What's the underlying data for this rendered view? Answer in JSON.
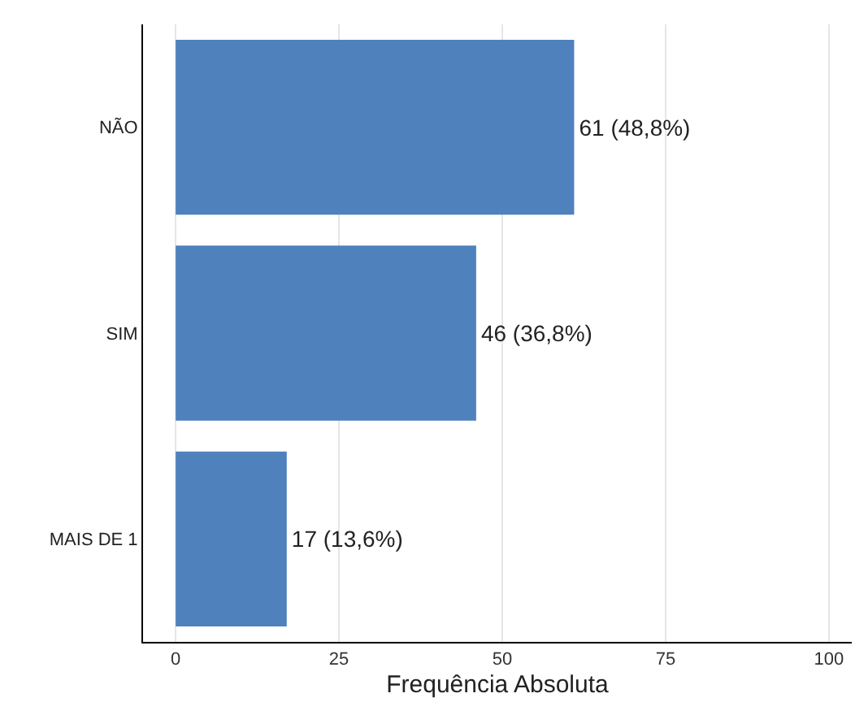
{
  "chart_data": {
    "type": "bar",
    "orientation": "horizontal",
    "xlabel": "Frequência Absoluta",
    "categories": [
      "NÃO",
      "SIM",
      "MAIS DE 1"
    ],
    "series": [
      {
        "color": "#4f81bd",
        "values": [
          61,
          46,
          17
        ],
        "value_labels": [
          "61 (48,8%)",
          "46 (36,8%)",
          "17 (13,6%)"
        ]
      }
    ],
    "xlim": [
      -5,
      103.5
    ],
    "xticks": [
      0,
      25,
      50,
      75,
      100
    ],
    "grid": "x"
  }
}
